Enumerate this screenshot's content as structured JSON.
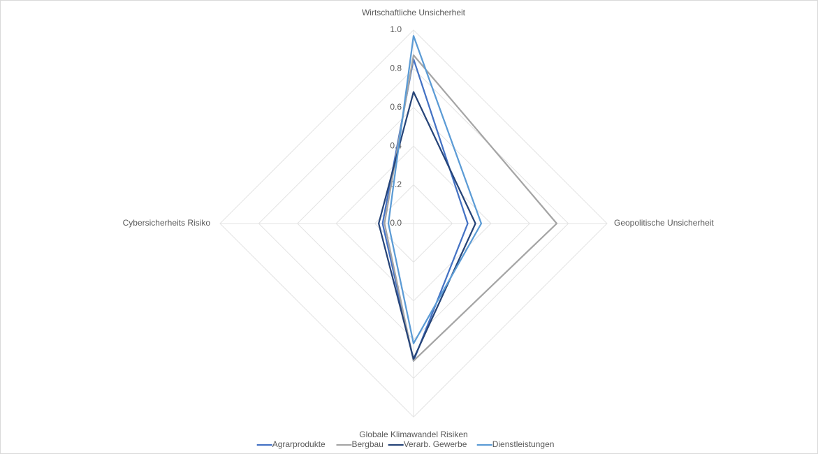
{
  "chart_data": {
    "type": "radar",
    "categories": [
      "Wirtschaftliche Unsicherheit",
      "Geopolitische Unsicherheit",
      "Globale Klimawandel Risiken",
      "Cybersicherheits Risiko"
    ],
    "series": [
      {
        "name": "Agrarprodukte",
        "color": "#4472c4",
        "values": [
          0.85,
          0.28,
          0.71,
          0.16
        ]
      },
      {
        "name": "Bergbau",
        "color": "#a5a5a5",
        "values": [
          0.87,
          0.74,
          0.71,
          0.15
        ]
      },
      {
        "name": "Verarb. Gewerbe",
        "color": "#264478",
        "values": [
          0.68,
          0.32,
          0.7,
          0.18
        ]
      },
      {
        "name": "Dienstleistungen",
        "color": "#5b9bd5",
        "values": [
          0.97,
          0.35,
          0.62,
          0.13
        ]
      }
    ],
    "ylim": [
      0,
      1
    ],
    "yticks": [
      {
        "value": 0,
        "label": "0.0"
      },
      0.2,
      0.4,
      0.6,
      0.8,
      {
        "value": 1,
        "label": "1.0"
      }
    ],
    "grid": true,
    "legend": "bottom"
  }
}
